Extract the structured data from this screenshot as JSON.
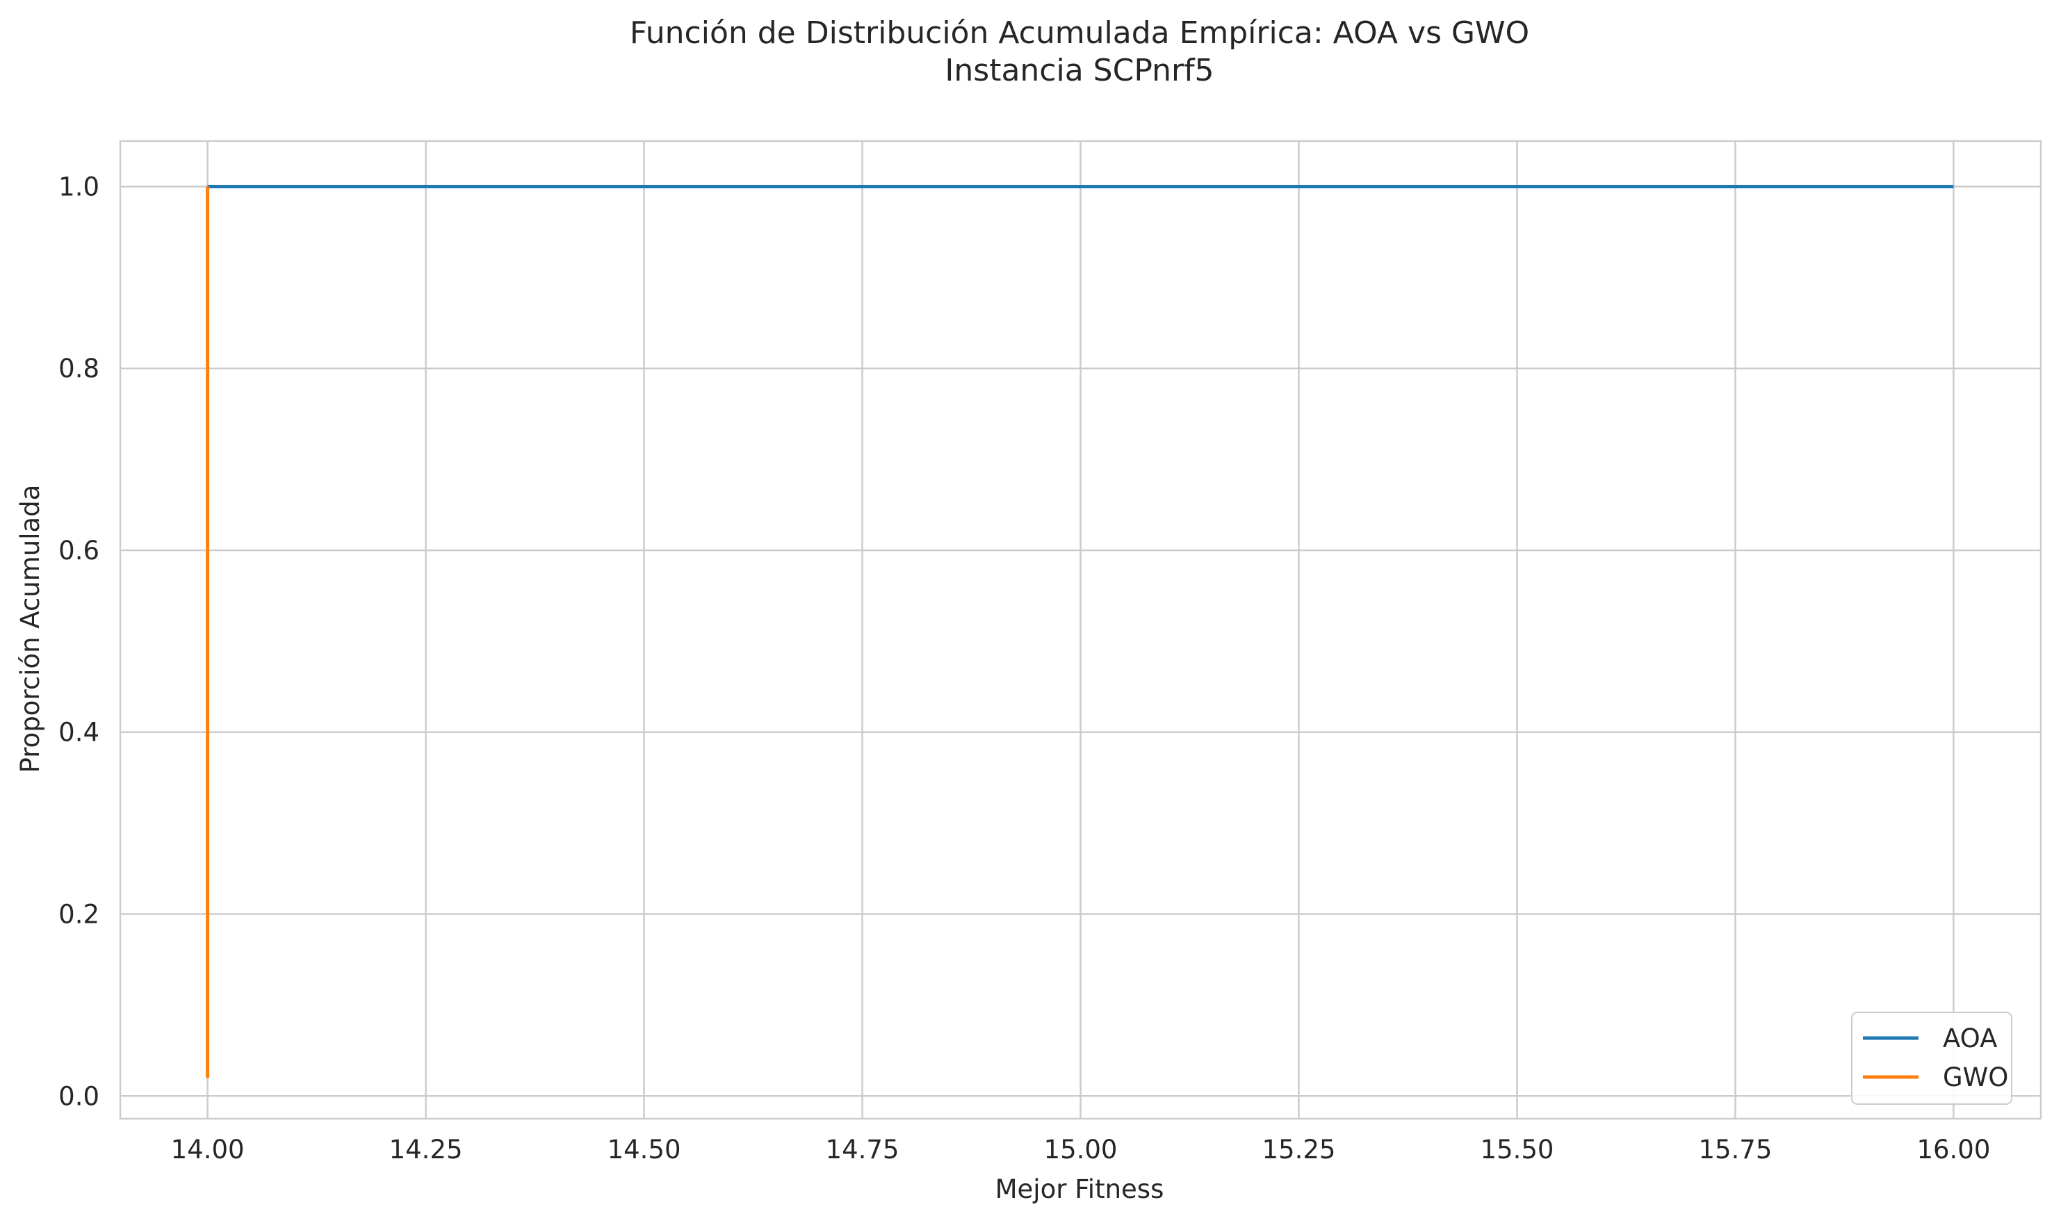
{
  "chart_data": {
    "type": "line",
    "title": "Función de Distribución Acumulada Empírica: AOA vs GWO",
    "subtitle": "Instancia SCPnrf5",
    "xlabel": "Mejor Fitness",
    "ylabel": "Proporción Acumulada",
    "xlim": [
      13.9,
      16.1
    ],
    "ylim": [
      -0.025,
      1.05
    ],
    "xticks": [
      14.0,
      14.25,
      14.5,
      14.75,
      15.0,
      15.25,
      15.5,
      15.75,
      16.0
    ],
    "xtick_labels": [
      "14.00",
      "14.25",
      "14.50",
      "14.75",
      "15.00",
      "15.25",
      "15.50",
      "15.75",
      "16.00"
    ],
    "yticks": [
      0.0,
      0.2,
      0.4,
      0.6,
      0.8,
      1.0
    ],
    "ytick_labels": [
      "0.0",
      "0.2",
      "0.4",
      "0.6",
      "0.8",
      "1.0"
    ],
    "grid": true,
    "legend_position": "lower right",
    "series": [
      {
        "name": "AOA",
        "color": "#1f77b4",
        "x": [
          14.0,
          16.0
        ],
        "y": [
          1.0,
          1.0
        ]
      },
      {
        "name": "GWO",
        "color": "#ff7f0e",
        "x": [
          14.0,
          14.0
        ],
        "y": [
          0.02,
          1.0
        ]
      }
    ]
  }
}
